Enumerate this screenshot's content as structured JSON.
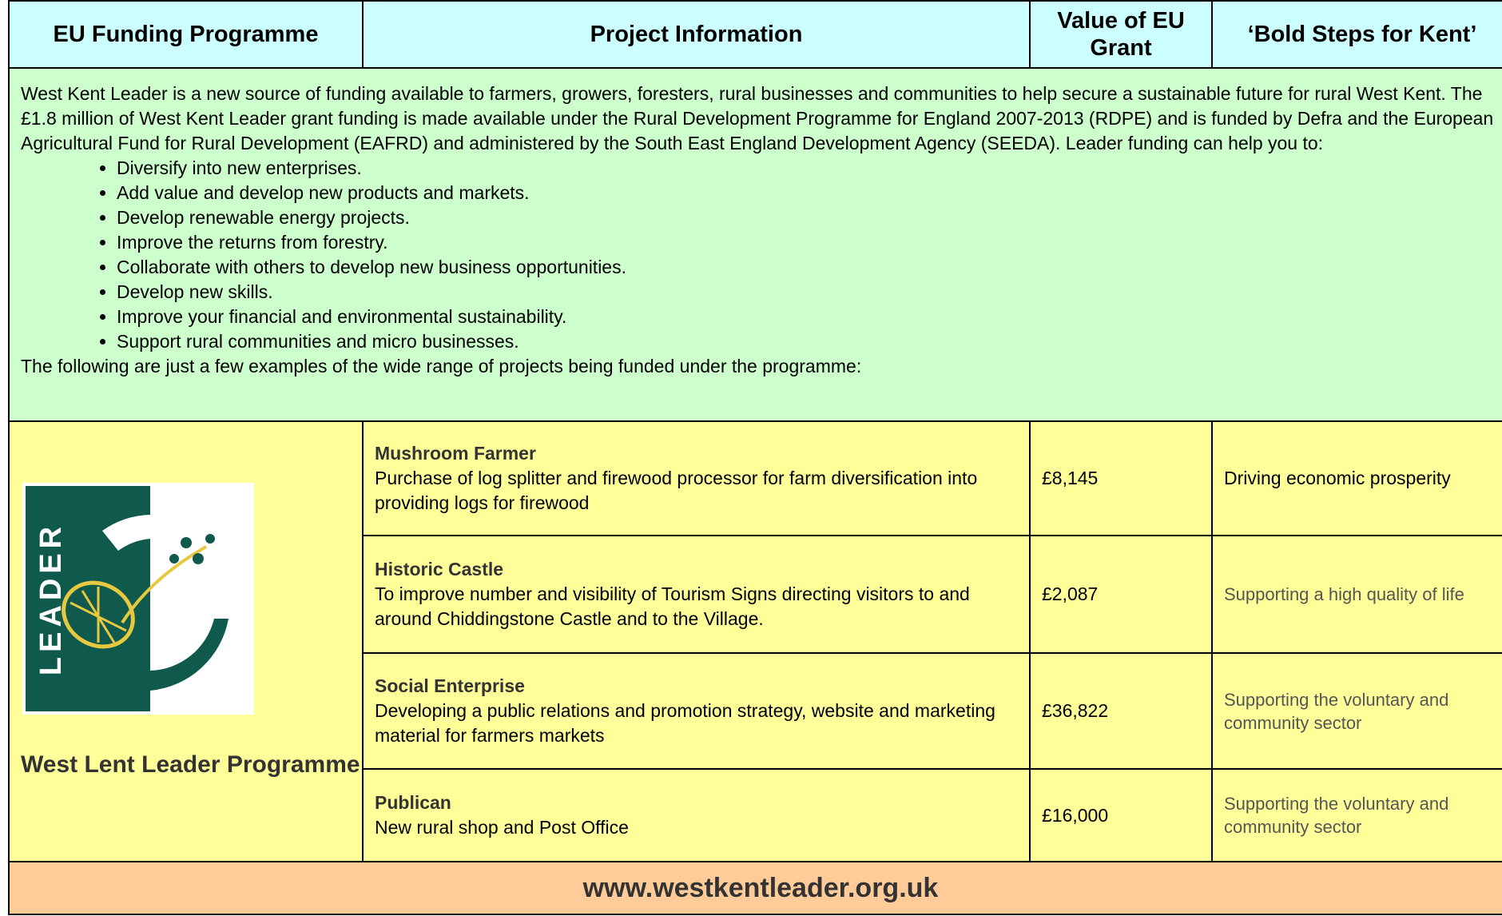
{
  "header": [
    "EU Funding Programme",
    "Project Information",
    "Value of EU Grant",
    "‘Bold Steps for Kent’"
  ],
  "intro": {
    "paragraph": "West Kent Leader is a new source of funding available to farmers, growers, foresters, rural businesses and communities to help secure a sustainable future for rural West Kent. The £1.8 million of West Kent Leader grant funding is made available under the Rural Development Programme for England 2007-2013 (RDPE) and is funded by Defra and the European Agricultural Fund for Rural Development (EAFRD) and administered by the South East England Development Agency (SEEDA). Leader funding can help you to:",
    "bullets": [
      "Diversify into new enterprises.",
      "Add value and develop new products and markets.",
      "Develop renewable energy projects.",
      "Improve the returns from forestry.",
      "Collaborate with others to develop new business opportunities.",
      "Develop new skills.",
      "Improve your financial and environmental sustainability.",
      "Support rural communities and micro businesses."
    ],
    "closing": "The following are just a few examples of the wide range of projects being funded under the programme:"
  },
  "logo": {
    "text": "LEADER",
    "label": "West Lent Leader Programme"
  },
  "projects": [
    {
      "title": "Mushroom Farmer",
      "description": "Purchase of log splitter and firewood processor for farm diversification into providing logs for firewood",
      "value": "£8,145",
      "steps": "Driving economic prosperity"
    },
    {
      "title": "Historic Castle",
      "description": "To improve number and visibility of Tourism Signs directing visitors to and around Chiddingstone Castle and to the Village.",
      "value": "£2,087",
      "steps": "Supporting a high quality of life"
    },
    {
      "title": "Social Enterprise",
      "description": "Developing a public relations and promotion strategy, website and marketing material for farmers markets",
      "value": "£36,822",
      "steps": "Supporting the voluntary and community sector"
    },
    {
      "title": "Publican",
      "description": "New rural shop and Post Office",
      "value": "£16,000",
      "steps": "Supporting the voluntary and community sector"
    }
  ],
  "footer": "www.westkentleader.org.uk"
}
